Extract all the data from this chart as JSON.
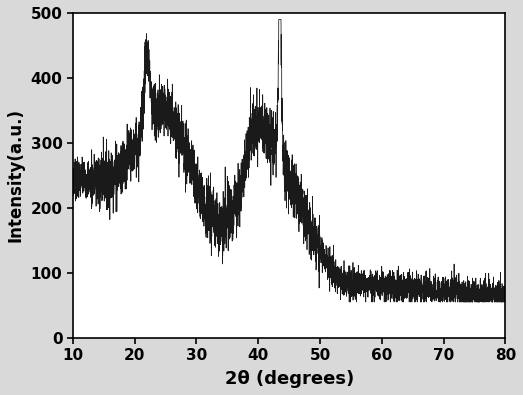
{
  "xlabel": "2θ (degrees)",
  "ylabel": "Intensity(a.u.)",
  "xlim": [
    10,
    80
  ],
  "ylim": [
    0,
    500
  ],
  "xticks": [
    10,
    20,
    30,
    40,
    50,
    60,
    70,
    80
  ],
  "yticks": [
    0,
    100,
    200,
    300,
    400,
    500
  ],
  "line_color": "#1a1a1a",
  "background_color": "#d9d9d9",
  "plot_bg_color": "#ffffff",
  "seed": 7
}
